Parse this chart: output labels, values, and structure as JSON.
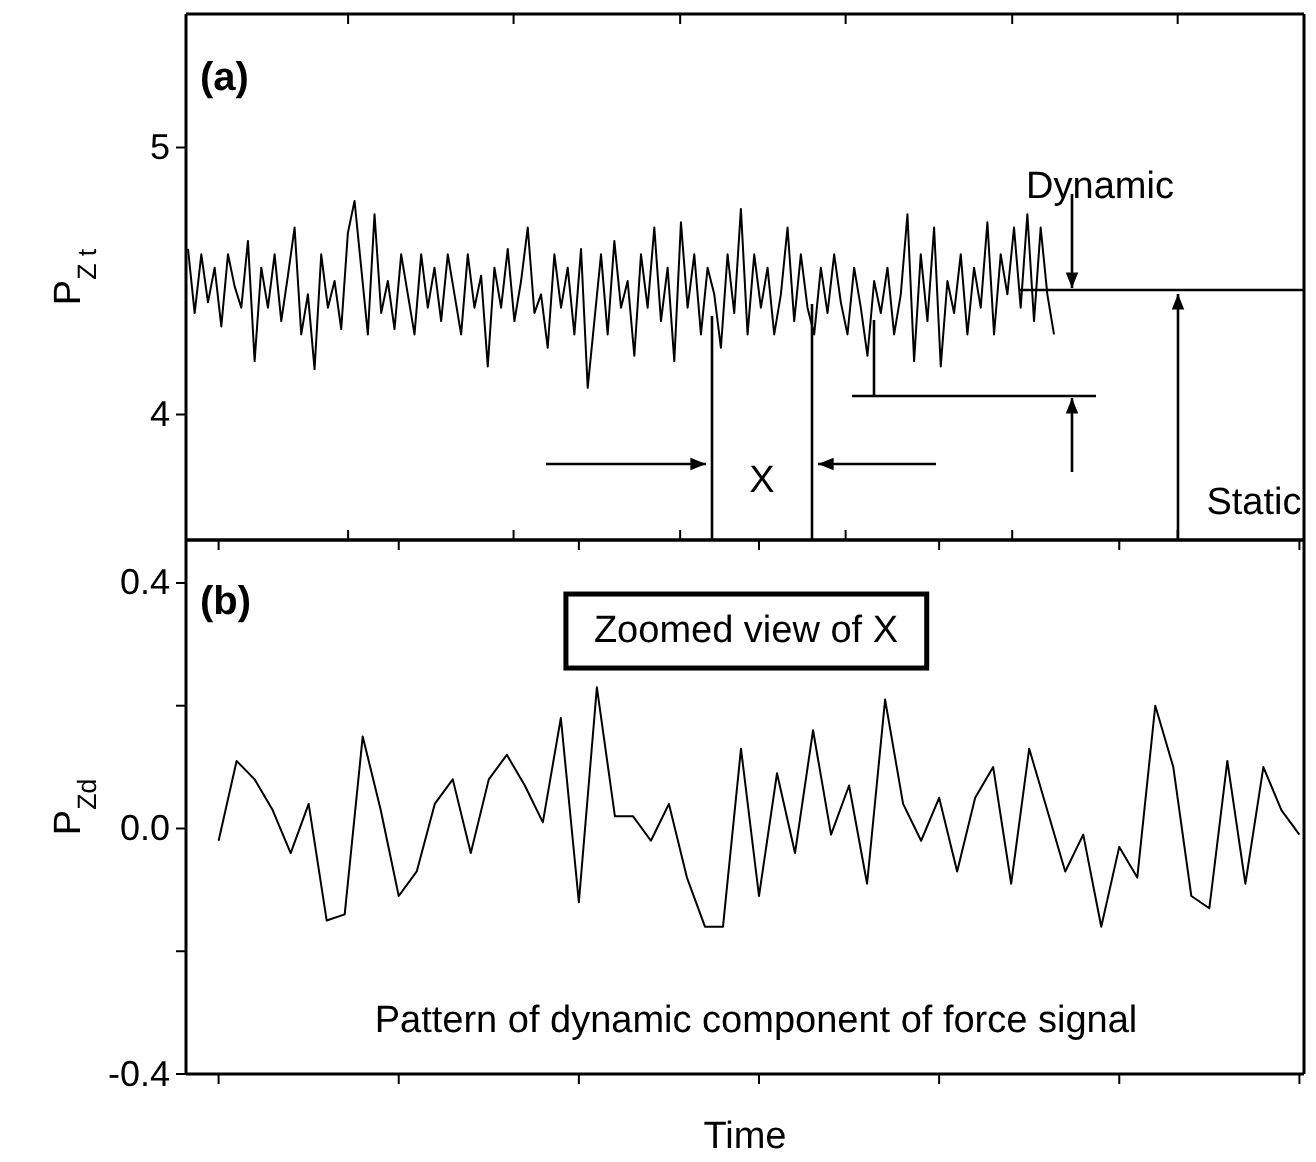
{
  "chart_data": [
    {
      "type": "line",
      "ylabel": "P$_{Z t}$",
      "annotations": [
        "(a)",
        "Dynamic",
        "X",
        "Static"
      ],
      "categories": [
        null,
        null,
        null,
        null,
        null,
        null,
        null,
        null,
        null,
        null,
        null,
        null,
        null,
        null,
        null,
        null,
        null,
        null,
        null,
        null,
        null,
        null,
        null,
        null,
        null,
        null,
        null,
        null,
        null,
        null,
        null,
        null,
        null,
        null,
        null,
        null,
        null,
        null,
        null,
        null,
        null,
        null,
        null,
        null,
        null,
        null,
        null,
        null,
        null,
        null,
        null,
        null,
        null,
        null,
        null,
        null,
        null,
        null,
        null,
        null,
        null,
        null,
        null,
        null,
        null,
        null,
        null,
        null,
        null,
        null,
        null,
        null,
        null,
        null,
        null,
        null,
        null,
        null,
        null,
        null,
        null,
        null,
        null,
        null,
        null,
        null,
        null,
        null,
        null,
        null,
        null,
        null,
        null,
        null,
        null,
        null,
        null,
        null,
        null,
        null,
        null,
        null,
        null,
        null,
        null,
        null,
        null,
        null,
        null,
        null,
        null,
        null,
        null,
        null,
        null,
        null,
        null,
        null,
        null,
        null,
        null,
        null,
        null,
        null,
        null,
        null,
        null,
        null,
        null,
        null,
        null
      ],
      "values": [
        4.62,
        4.38,
        4.6,
        4.42,
        4.55,
        4.33,
        4.6,
        4.48,
        4.4,
        4.65,
        4.2,
        4.55,
        4.4,
        4.6,
        4.35,
        4.52,
        4.7,
        4.3,
        4.45,
        4.17,
        4.6,
        4.4,
        4.5,
        4.32,
        4.68,
        4.8,
        4.55,
        4.3,
        4.75,
        4.38,
        4.5,
        4.32,
        4.6,
        4.45,
        4.3,
        4.6,
        4.4,
        4.55,
        4.35,
        4.6,
        4.45,
        4.3,
        4.6,
        4.4,
        4.52,
        4.18,
        4.55,
        4.4,
        4.62,
        4.35,
        4.5,
        4.7,
        4.38,
        4.45,
        4.25,
        4.6,
        4.4,
        4.55,
        4.3,
        4.62,
        4.1,
        4.35,
        4.6,
        4.3,
        4.65,
        4.4,
        4.5,
        4.22,
        4.6,
        4.4,
        4.7,
        4.35,
        4.55,
        4.2,
        4.72,
        4.4,
        4.6,
        4.3,
        4.55,
        4.45,
        4.25,
        4.6,
        4.38,
        4.77,
        4.3,
        4.6,
        4.4,
        4.55,
        4.3,
        4.45,
        4.7,
        4.35,
        4.6,
        4.4,
        4.3,
        4.55,
        4.38,
        4.6,
        4.42,
        4.3,
        4.55,
        4.4,
        4.22,
        4.5,
        4.38,
        4.55,
        4.3,
        4.45,
        4.75,
        4.2,
        4.6,
        4.35,
        4.7,
        4.18,
        4.5,
        4.38,
        4.6,
        4.3,
        4.55,
        4.4,
        4.72,
        4.3,
        4.6,
        4.45,
        4.7,
        4.4,
        4.75,
        4.35,
        4.7,
        4.45,
        4.3
      ],
      "color": "#000000",
      "ylim": [
        3.53,
        5.5
      ],
      "yticks": [
        4,
        5
      ],
      "tick_labels": "y",
      "grid": false,
      "marker": "none",
      "line_style": "solid"
    },
    {
      "type": "line",
      "ylabel": "P$_{Zd}$",
      "xlabel": "Time",
      "annotations": [
        "(b)",
        "Zoomed view of X",
        "Pattern of dynamic component of force signal"
      ],
      "categories": [
        null,
        null,
        null,
        null,
        null,
        null,
        null,
        null,
        null,
        null,
        null,
        null,
        null,
        null,
        null,
        null,
        null,
        null,
        null,
        null,
        null,
        null,
        null,
        null,
        null,
        null,
        null,
        null,
        null,
        null,
        null,
        null,
        null,
        null,
        null,
        null,
        null,
        null,
        null,
        null,
        null,
        null,
        null,
        null,
        null,
        null,
        null,
        null,
        null,
        null,
        null,
        null,
        null,
        null,
        null,
        null,
        null,
        null,
        null,
        null,
        null
      ],
      "values": [
        -0.02,
        0.11,
        0.08,
        0.03,
        -0.04,
        0.04,
        -0.15,
        -0.14,
        0.15,
        0.03,
        -0.11,
        -0.07,
        0.04,
        0.08,
        -0.04,
        0.08,
        0.12,
        0.07,
        0.01,
        0.18,
        -0.12,
        0.23,
        0.02,
        0.02,
        -0.02,
        0.04,
        -0.08,
        -0.16,
        -0.16,
        0.13,
        -0.11,
        0.09,
        -0.04,
        0.16,
        -0.01,
        0.07,
        -0.09,
        0.21,
        0.04,
        -0.02,
        0.05,
        -0.07,
        0.05,
        0.1,
        -0.09,
        0.13,
        0.03,
        -0.07,
        -0.01,
        -0.16,
        -0.03,
        -0.08,
        0.2,
        0.1,
        -0.11,
        -0.13,
        0.11,
        -0.09,
        0.1,
        0.03,
        -0.01
      ],
      "color": "#000000",
      "ylim": [
        -0.4,
        0.47
      ],
      "yticks": [
        {
          "value": -0.4,
          "label": "-0.4"
        },
        {
          "value": -0.2,
          "label": null
        },
        {
          "value": 0,
          "label": "0.0"
        },
        {
          "value": 0.2,
          "label": null
        },
        {
          "value": 0.4,
          "label": "0.4"
        }
      ],
      "tick_labels": "y",
      "grid": false,
      "marker": "none",
      "line_style": "solid"
    }
  ]
}
